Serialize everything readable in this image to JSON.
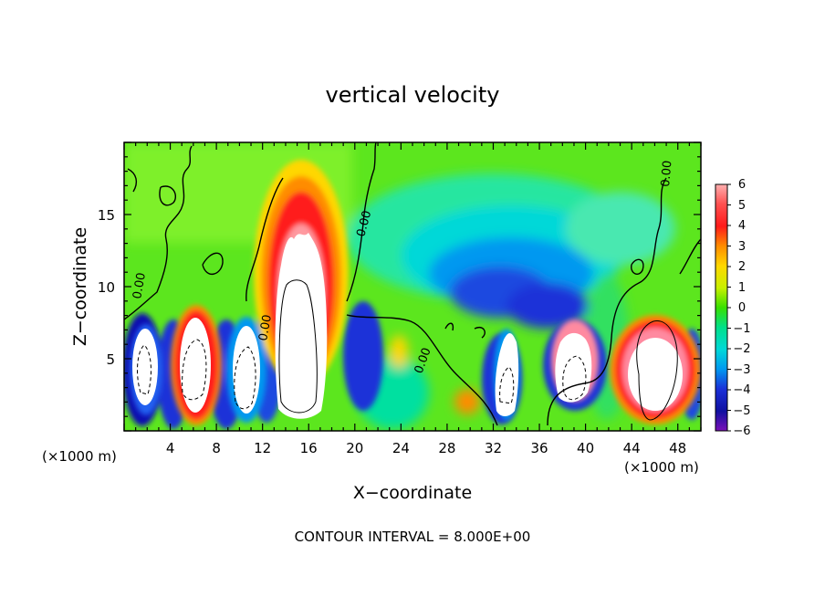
{
  "chart_data": {
    "type": "heatmap",
    "title": "vertical velocity",
    "xlabel": "X−coordinate",
    "ylabel": "Z−coordinate",
    "x_unit_left": "(×1000 m)",
    "x_unit_right": "(×1000 m)",
    "xlim": [
      0,
      50
    ],
    "ylim": [
      0,
      20
    ],
    "x_ticks": [
      "4",
      "8",
      "12",
      "16",
      "20",
      "24",
      "28",
      "32",
      "36",
      "40",
      "44",
      "48"
    ],
    "y_ticks": [
      "5",
      "10",
      "15"
    ],
    "colorbar": {
      "min": -6,
      "max": 6,
      "labels": [
        "6",
        "5",
        "4",
        "3",
        "2",
        "1",
        "0",
        "−1",
        "−2",
        "−3",
        "−4",
        "−5",
        "−6"
      ]
    },
    "contour_labels": [
      "0.00",
      "0.00",
      "0.00",
      "0.00",
      "0.00"
    ],
    "updrafts_x": [
      2,
      6,
      10,
      14.5,
      32.5,
      38.5,
      46
    ],
    "annotation": "CONTOUR INTERVAL = 8.000E+00"
  }
}
